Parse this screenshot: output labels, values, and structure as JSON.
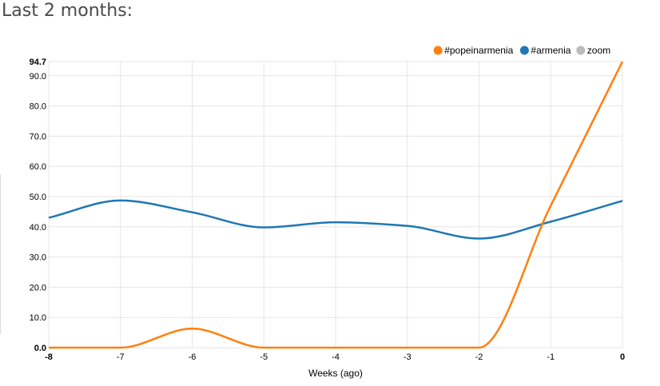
{
  "page": {
    "heading": "Last 2 months:"
  },
  "legend": [
    {
      "label": "#popeinarmenia",
      "color": "#ff7f0e",
      "interactive": true
    },
    {
      "label": "#armenia",
      "color": "#1f77b4",
      "interactive": true
    },
    {
      "label": "zoom",
      "color": "#bbbbbb",
      "interactive": true
    }
  ],
  "chart_data": {
    "type": "line",
    "title": "",
    "xlabel": "Weeks (ago)",
    "ylabel": "",
    "x": [
      -8,
      -7,
      -6,
      -5,
      -4,
      -3,
      -2,
      -1,
      0
    ],
    "xticks": [
      -8,
      -7,
      -6,
      -5,
      -4,
      -3,
      -2,
      -1,
      0
    ],
    "xtick_labels": [
      "-8",
      "-7",
      "-6",
      "-5",
      "-4",
      "-3",
      "-2",
      "-1",
      "0"
    ],
    "xlim": [
      -8,
      0
    ],
    "yticks": [
      0,
      10,
      20,
      30,
      40,
      50,
      60,
      70,
      80,
      90,
      94.7
    ],
    "ytick_labels": [
      "0.0",
      "10.0",
      "20.0",
      "30.0",
      "40.0",
      "50.0",
      "60.0",
      "70.0",
      "80.0",
      "90.0",
      "94.7"
    ],
    "ylim": [
      0,
      94.7
    ],
    "grid": true,
    "legend_position": "top-right",
    "series": [
      {
        "name": "#popeinarmenia",
        "color": "#ff7f0e",
        "values": [
          0,
          0,
          6.3,
          0,
          0,
          0,
          0,
          47.0,
          94.7
        ]
      },
      {
        "name": "#armenia",
        "color": "#1f77b4",
        "values": [
          43.0,
          48.7,
          44.8,
          39.8,
          41.5,
          40.3,
          36.1,
          41.7,
          48.6
        ]
      }
    ]
  }
}
